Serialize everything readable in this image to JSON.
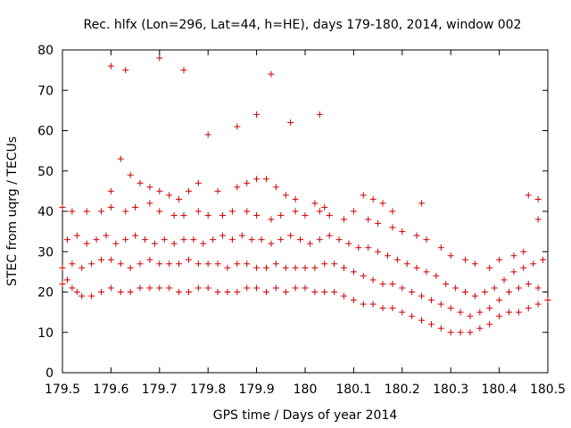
{
  "chart_data": {
    "type": "scatter",
    "title": "Rec. hlfx (Lon=296, Lat=44, h=HE), days 179-180, 2014, window 002",
    "xlabel": "GPS time / Days of year 2014",
    "ylabel": "STEC from uqrg / TECUs",
    "xlim": [
      179.5,
      180.5
    ],
    "ylim": [
      0,
      80
    ],
    "xticks": [
      179.5,
      179.6,
      179.7,
      179.8,
      179.9,
      180,
      180.1,
      180.2,
      180.3,
      180.4,
      180.5
    ],
    "xtick_labels": [
      "179.5",
      "179.6",
      "179.7",
      "179.8",
      "179.9",
      "180",
      "180.1",
      "180.2",
      "180.3",
      "180.4",
      "180.5"
    ],
    "yticks": [
      0,
      10,
      20,
      30,
      40,
      50,
      60,
      70,
      80
    ],
    "ytick_labels": [
      "0",
      "10",
      "20",
      "30",
      "40",
      "50",
      "60",
      "70",
      "80"
    ],
    "grid": false,
    "legend": "none",
    "marker": "plus",
    "color": "#cc0000",
    "series": [
      {
        "x": [
          179.5,
          179.51,
          179.52,
          179.53,
          179.54,
          179.56,
          179.58,
          179.6,
          179.62,
          179.64,
          179.66,
          179.68,
          179.7,
          179.72,
          179.74,
          179.76,
          179.78,
          179.8,
          179.82,
          179.84,
          179.86,
          179.88,
          179.9,
          179.92,
          179.94,
          179.96,
          179.98,
          180.0,
          180.02,
          180.04,
          180.06,
          180.08,
          180.1,
          180.12,
          180.14,
          180.16,
          180.18,
          180.2,
          180.22,
          180.24,
          180.26,
          180.28,
          180.3,
          180.32,
          180.34,
          180.36,
          180.38,
          180.4,
          180.42,
          180.44,
          180.46,
          180.48,
          180.5,
          179.5,
          179.52,
          179.54,
          179.56,
          179.58,
          179.6,
          179.62,
          179.64,
          179.66,
          179.68,
          179.7,
          179.72,
          179.74,
          179.76,
          179.78,
          179.8,
          179.82,
          179.84,
          179.86,
          179.88,
          179.9,
          179.92,
          179.94,
          179.96,
          179.98,
          180.0,
          180.02,
          180.04,
          180.06,
          180.08,
          180.1,
          180.12,
          180.14,
          180.16,
          180.18,
          180.2,
          180.22,
          180.24,
          180.26,
          180.28,
          180.3,
          180.32,
          180.34,
          180.36,
          180.38,
          180.4,
          180.42,
          180.44,
          180.46,
          180.48,
          179.51,
          179.53,
          179.55,
          179.57,
          179.59,
          179.61,
          179.63,
          179.65,
          179.67,
          179.69,
          179.71,
          179.73,
          179.75,
          179.77,
          179.79,
          179.81,
          179.83,
          179.85,
          179.87,
          179.89,
          179.91,
          179.93,
          179.95,
          179.97,
          179.99,
          180.01,
          180.03,
          180.05,
          180.07,
          180.09,
          180.11,
          180.13,
          180.15,
          180.17,
          180.19,
          180.21,
          180.23,
          180.25,
          180.27,
          180.29,
          180.31,
          180.33,
          180.35,
          180.37,
          180.39,
          180.41,
          180.43,
          180.45,
          180.47,
          180.49,
          179.5,
          179.52,
          179.55,
          179.58,
          179.6,
          179.63,
          179.65,
          179.68,
          179.7,
          179.73,
          179.75,
          179.78,
          179.8,
          179.83,
          179.85,
          179.88,
          179.9,
          179.93,
          179.95,
          179.98,
          180.0,
          180.03,
          180.05,
          180.08,
          180.1,
          180.13,
          180.15,
          180.18,
          180.2,
          180.23,
          180.25,
          180.28,
          180.3,
          180.33,
          180.35,
          180.38,
          180.4,
          180.43,
          180.45,
          180.48,
          179.6,
          179.62,
          179.64,
          179.66,
          179.68,
          179.7,
          179.72,
          179.74,
          179.76,
          179.78,
          179.82,
          179.86,
          179.88,
          179.9,
          179.92,
          179.94,
          179.96,
          179.98,
          180.02,
          180.04,
          180.12,
          180.14,
          180.16,
          180.18,
          180.24,
          180.46,
          180.48,
          179.6,
          179.63,
          179.7,
          179.75,
          179.8,
          179.86,
          179.9,
          179.93,
          179.97,
          180.03
        ],
        "y": [
          22,
          23,
          21,
          20,
          19,
          19,
          20,
          21,
          20,
          20,
          21,
          21,
          21,
          21,
          20,
          20,
          21,
          21,
          20,
          20,
          20,
          21,
          21,
          20,
          21,
          20,
          21,
          21,
          20,
          20,
          20,
          19,
          18,
          17,
          17,
          16,
          16,
          15,
          14,
          13,
          12,
          11,
          10,
          10,
          10,
          11,
          12,
          14,
          15,
          15,
          16,
          17,
          18,
          26,
          27,
          26,
          27,
          28,
          28,
          27,
          26,
          27,
          28,
          27,
          27,
          27,
          28,
          27,
          27,
          27,
          26,
          27,
          27,
          26,
          26,
          27,
          26,
          26,
          26,
          26,
          27,
          27,
          26,
          25,
          24,
          23,
          22,
          22,
          21,
          20,
          19,
          18,
          17,
          16,
          15,
          14,
          15,
          16,
          18,
          20,
          21,
          22,
          21,
          33,
          34,
          32,
          33,
          34,
          32,
          33,
          34,
          33,
          32,
          33,
          32,
          33,
          33,
          32,
          33,
          34,
          33,
          34,
          33,
          33,
          32,
          33,
          34,
          33,
          32,
          33,
          34,
          33,
          32,
          31,
          31,
          30,
          29,
          28,
          27,
          26,
          25,
          24,
          22,
          21,
          20,
          19,
          20,
          21,
          23,
          25,
          26,
          27,
          28,
          41,
          40,
          40,
          40,
          41,
          40,
          41,
          42,
          40,
          39,
          39,
          40,
          39,
          39,
          40,
          40,
          39,
          38,
          39,
          40,
          39,
          40,
          39,
          38,
          40,
          38,
          37,
          36,
          35,
          34,
          33,
          31,
          29,
          28,
          27,
          26,
          28,
          29,
          30,
          38,
          45,
          53,
          49,
          47,
          46,
          45,
          44,
          43,
          45,
          47,
          45,
          46,
          47,
          48,
          48,
          46,
          44,
          43,
          42,
          41,
          44,
          43,
          42,
          40,
          42,
          44,
          43,
          76,
          75,
          78,
          75,
          59,
          61,
          64,
          74,
          62,
          64
        ]
      }
    ]
  }
}
